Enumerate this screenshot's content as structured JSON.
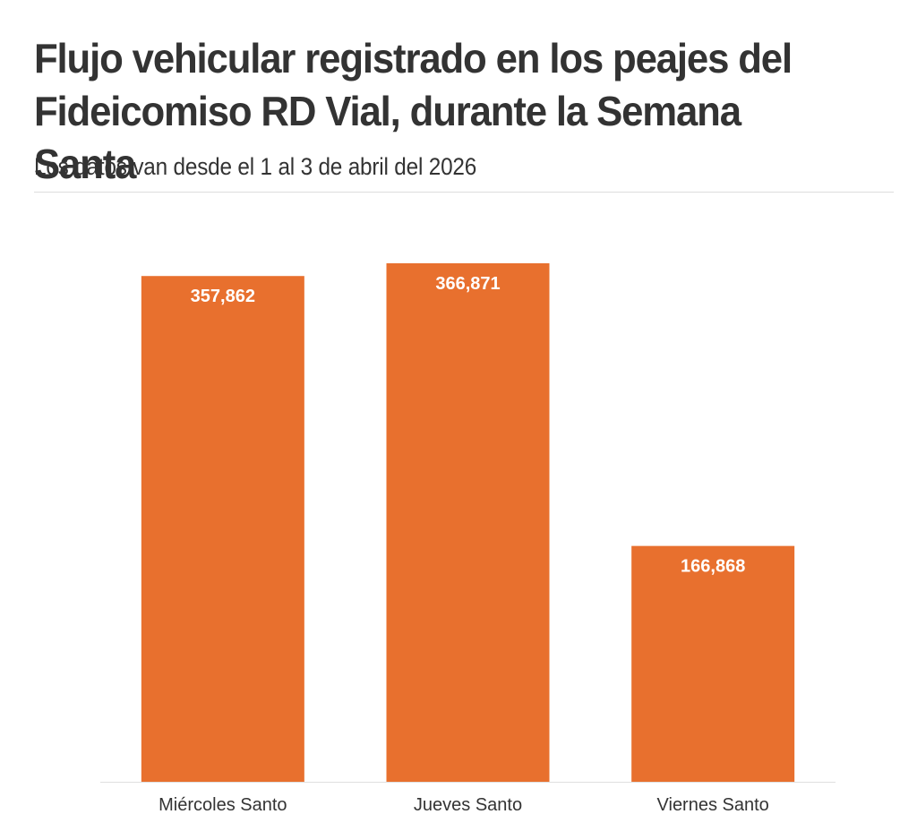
{
  "title": "Flujo vehicular registrado en los peajes del Fideicomiso RD Vial, durante la Semana Santa",
  "subtitle": "Los datos van desde el 1 al 3 de abril del 2026",
  "colors": {
    "bar": "#e8702e",
    "baseline": "#e0e0e0",
    "divider": "#dddddd",
    "text": "#333333",
    "bar_label": "#ffffff"
  },
  "chart_data": {
    "type": "bar",
    "title": "Flujo vehicular registrado en los peajes del Fideicomiso RD Vial, durante la Semana Santa",
    "subtitle": "Los datos van desde el 1 al 3 de abril del 2026",
    "xlabel": "",
    "ylabel": "",
    "categories": [
      "Miércoles Santo",
      "Jueves Santo",
      "Viernes Santo"
    ],
    "values": [
      357862,
      366871,
      166868
    ],
    "value_labels": [
      "357,862",
      "366,871",
      "166,868"
    ],
    "ylim": [
      0,
      366871
    ],
    "grid": false,
    "legend": "none",
    "data_labels": "inside-top"
  }
}
